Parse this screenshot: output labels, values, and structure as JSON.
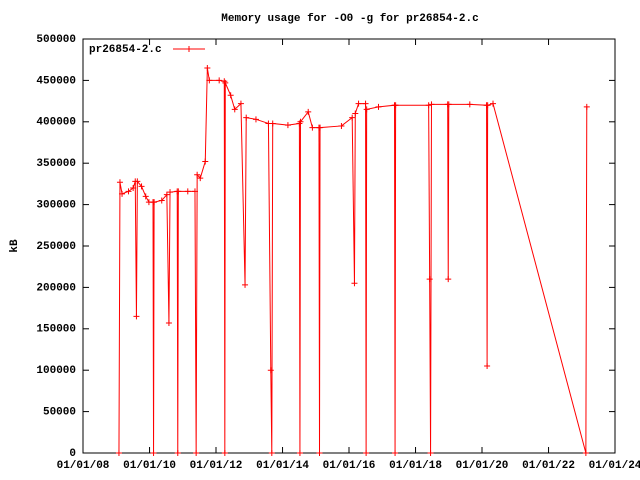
{
  "chart_data": {
    "type": "line",
    "title": "Memory usage for -O0 -g for pr26854-2.c",
    "y_label": "kB",
    "x": [
      "2009-01-30",
      "2009-02-10",
      "2009-03-05",
      "2009-05-15",
      "2009-07-05",
      "2009-07-28",
      "2009-08-10",
      "2009-08-20",
      "2009-10-05",
      "2009-11-20",
      "2009-12-25",
      "2010-02-08",
      "2010-02-14",
      "2010-02-20",
      "2010-05-15",
      "2010-07-10",
      "2010-08-02",
      "2010-08-14",
      "2010-11-01",
      "2010-11-07",
      "2010-11-13",
      "2011-02-25",
      "2011-05-15",
      "2011-05-28",
      "2011-06-08",
      "2011-07-12",
      "2011-09-05",
      "2011-09-28",
      "2011-10-20",
      "2012-02-05",
      "2012-04-01",
      "2012-04-07",
      "2012-04-12",
      "2012-06-10",
      "2012-07-25",
      "2012-10-01",
      "2012-11-15",
      "2012-11-28",
      "2013-03-15",
      "2013-07-30",
      "2013-08-25",
      "2013-09-05",
      "2013-09-15",
      "2014-03-01",
      "2014-07-05",
      "2014-07-11",
      "2014-07-17",
      "2014-10-10",
      "2014-11-25",
      "2015-02-05",
      "2015-02-11",
      "2015-02-17",
      "2015-10-10",
      "2016-02-05",
      "2016-03-01",
      "2016-03-10",
      "2016-04-15",
      "2016-07-01",
      "2016-07-07",
      "2016-07-13",
      "2016-11-20",
      "2017-05-15",
      "2017-05-21",
      "2017-05-27",
      "2018-05-25",
      "2018-06-05",
      "2018-06-15",
      "2018-06-25",
      "2018-12-20",
      "2018-12-26",
      "2019-01-01",
      "2019-08-20",
      "2020-02-20",
      "2020-02-26",
      "2020-03-03",
      "2020-05-01",
      "2023-02-15",
      "2023-02-25"
    ],
    "series": [
      {
        "name": "pr26854-2.c",
        "color": "#ff0000",
        "values": [
          0,
          327000,
          313000,
          316000,
          320000,
          328000,
          165000,
          328000,
          322000,
          310000,
          303000,
          303000,
          0,
          303000,
          305000,
          312000,
          157000,
          315000,
          316000,
          0,
          316000,
          316000,
          316000,
          0,
          336000,
          332000,
          352000,
          465000,
          450000,
          450000,
          449000,
          0,
          447000,
          432000,
          415000,
          422000,
          203000,
          405000,
          403000,
          398000,
          100000,
          0,
          398000,
          396000,
          398000,
          0,
          400000,
          412000,
          393000,
          393000,
          0,
          393000,
          395000,
          405000,
          205000,
          410000,
          422000,
          422000,
          0,
          415000,
          418000,
          420000,
          0,
          420000,
          420000,
          210000,
          0,
          421000,
          421000,
          210000,
          421000,
          421000,
          420000,
          105000,
          420000,
          422000,
          0,
          418000
        ]
      }
    ],
    "xlim": [
      "2008-01-01",
      "2024-01-01"
    ],
    "xticks": [
      {
        "value": "2008-01-01",
        "label": "01/01/08"
      },
      {
        "value": "2010-01-01",
        "label": "01/01/10"
      },
      {
        "value": "2012-01-01",
        "label": "01/01/12"
      },
      {
        "value": "2014-01-01",
        "label": "01/01/14"
      },
      {
        "value": "2016-01-01",
        "label": "01/01/16"
      },
      {
        "value": "2018-01-01",
        "label": "01/01/18"
      },
      {
        "value": "2020-01-01",
        "label": "01/01/20"
      },
      {
        "value": "2022-01-01",
        "label": "01/01/22"
      },
      {
        "value": "2024-01-01",
        "label": "01/01/24"
      }
    ],
    "ylim": [
      0,
      500000
    ],
    "yticks": [
      0,
      50000,
      100000,
      150000,
      200000,
      250000,
      300000,
      350000,
      400000,
      450000,
      500000
    ],
    "legend": "top-left"
  }
}
